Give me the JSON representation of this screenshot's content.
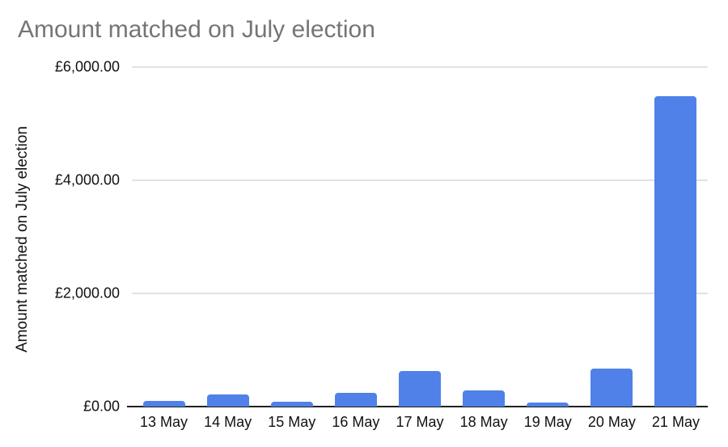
{
  "page": {
    "background_color": "#ffffff"
  },
  "chart_data": {
    "type": "bar",
    "title": "Amount matched on July election",
    "xlabel": "",
    "ylabel": "Amount matched on July election",
    "categories": [
      "13 May",
      "14 May",
      "15 May",
      "16 May",
      "17 May",
      "18 May",
      "19 May",
      "20 May",
      "21 May"
    ],
    "values": [
      100,
      210,
      85,
      240,
      630,
      290,
      75,
      675,
      5485
    ],
    "ylim": [
      0,
      6000
    ],
    "y_ticks": [
      {
        "value": 6000,
        "label": "£6,000.00"
      },
      {
        "value": 4000,
        "label": "£4,000.00"
      },
      {
        "value": 2000,
        "label": "£2,000.00"
      },
      {
        "value": 0,
        "label": "£0.00"
      }
    ],
    "grid": true,
    "legend_position": "none",
    "currency": "£",
    "colors": {
      "bar": "#4f81e8",
      "title_text": "#757575",
      "axis_text": "#111111",
      "gridline": "#e2e2e2",
      "baseline": "#212121"
    }
  }
}
